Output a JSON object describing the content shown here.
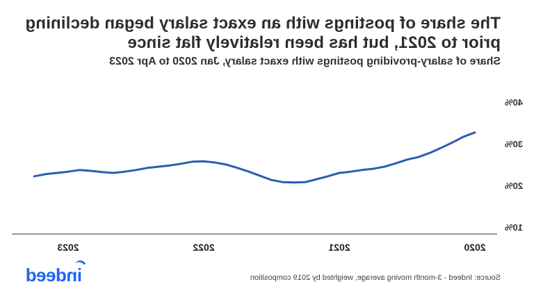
{
  "header": {
    "title": "The share of postings with an exact salary began declining prior to 2021, but has been relatively flat since",
    "subtitle": "Share of salary-providing postings with exact salary, Jan 2020 to Apr 2023"
  },
  "footer": {
    "source": "Source: Indeed - 3-month moving average, weighted by 2019 composition",
    "logo": "indeed"
  },
  "colors": {
    "line": "#2a5db0",
    "axis": "#777777",
    "logo": "#2164f3"
  },
  "chart_data": {
    "type": "line",
    "title": "The share of postings with an exact salary began declining prior to 2021, but has been relatively flat since",
    "subtitle": "Share of salary-providing postings with exact salary, Jan 2020 to Apr 2023",
    "xlabel": "",
    "ylabel": "",
    "ylim": [
      10,
      40
    ],
    "yticks": [
      "10%",
      "20%",
      "30%",
      "40%"
    ],
    "xticks": [
      "2020",
      "2021",
      "2022",
      "2023"
    ],
    "grid": false,
    "legend": null,
    "mirrored_horizontally": true,
    "x": [
      "2020-01",
      "2020-02",
      "2020-03",
      "2020-04",
      "2020-05",
      "2020-06",
      "2020-07",
      "2020-08",
      "2020-09",
      "2020-10",
      "2020-11",
      "2020-12",
      "2021-01",
      "2021-02",
      "2021-03",
      "2021-04",
      "2021-05",
      "2021-06",
      "2021-07",
      "2021-08",
      "2021-09",
      "2021-10",
      "2021-11",
      "2021-12",
      "2022-01",
      "2022-02",
      "2022-03",
      "2022-04",
      "2022-05",
      "2022-06",
      "2022-07",
      "2022-08",
      "2022-09",
      "2022-10",
      "2022-11",
      "2022-12",
      "2023-01",
      "2023-02",
      "2023-03",
      "2023-04"
    ],
    "series": [
      {
        "name": "Share with exact salary (%)",
        "values": [
          32.7,
          31.7,
          30.3,
          29.0,
          27.8,
          26.8,
          26.2,
          25.3,
          24.5,
          24.0,
          23.7,
          23.3,
          23.0,
          22.2,
          21.5,
          20.8,
          20.7,
          20.8,
          21.3,
          22.3,
          23.3,
          24.2,
          25.0,
          25.5,
          25.8,
          25.7,
          25.2,
          24.8,
          24.5,
          24.2,
          23.7,
          23.3,
          23.0,
          23.2,
          23.5,
          23.7,
          23.3,
          23.0,
          22.7,
          22.2
        ]
      }
    ],
    "source": "Source: Indeed - 3-month moving average, weighted by 2019 composition"
  }
}
